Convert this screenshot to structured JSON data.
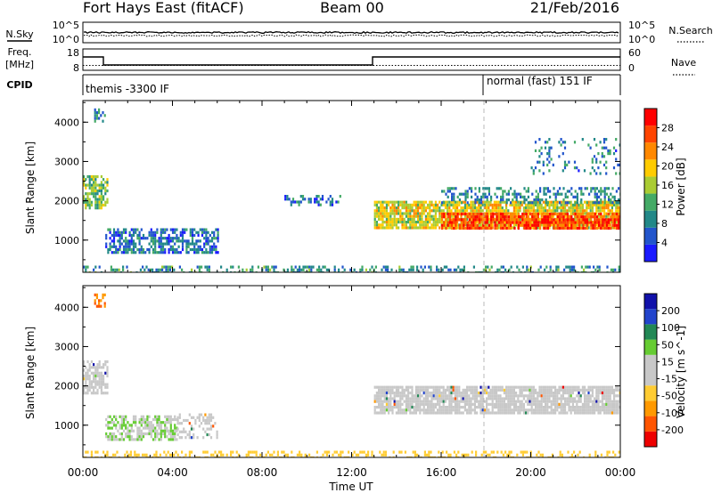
{
  "header": {
    "station": "Fort Hays East (fitACF)",
    "beam": "Beam 00",
    "date": "21/Feb/2016"
  },
  "top_panels": {
    "nsky": {
      "label": "N.Sky",
      "tick_top": "10^5",
      "tick_bottom": "10^0",
      "right_label": "N.Search",
      "right_tick_top": "10^5",
      "right_tick_bottom": "10^0"
    },
    "freq": {
      "label_line1": "Freq.",
      "label_line2": "[MHz]",
      "tick_top": "18",
      "tick_bottom": "8",
      "right_label": "Nave",
      "right_tick_top": "60",
      "right_tick_bottom": "0"
    },
    "cpid": {
      "label": "CPID",
      "modes": [
        {
          "name": "themis -3300 IF",
          "start_hour": 0.0
        },
        {
          "name": "normal (fast) 151 IF",
          "start_hour": 18.0
        }
      ]
    }
  },
  "colors": {
    "power_scale": [
      "#1a1aff",
      "#2255cc",
      "#228888",
      "#44aa66",
      "#aacc33",
      "#ffcc00",
      "#ff8800",
      "#ff4400",
      "#ff0000"
    ],
    "velocity_scale": [
      "#ee0000",
      "#ff5500",
      "#ff9900",
      "#ffcc33",
      "#c8c8c8",
      "#c8c8c8",
      "#66cc33",
      "#228855",
      "#2244cc",
      "#1111aa"
    ],
    "ground_scatter": "#c8c8c8"
  },
  "chart_data": [
    {
      "type": "heatmap",
      "panel": "power",
      "ylabel": "Slant Range [km]",
      "colorbar_label": "Power [dB]",
      "colorbar_ticks": [
        "4",
        "8",
        "12",
        "16",
        "20",
        "24",
        "28"
      ],
      "clim": [
        0,
        32
      ],
      "xlim_hours": [
        0,
        24
      ],
      "ylim_km": [
        180,
        4550
      ],
      "y_ticks": [
        "1000",
        "2000",
        "3000",
        "4000"
      ],
      "regions": [
        {
          "t0": 0.0,
          "t1": 1.1,
          "r0": 1800,
          "r1": 2650,
          "value": 14,
          "density": 0.7
        },
        {
          "t0": 0.5,
          "t1": 1.0,
          "r0": 4000,
          "r1": 4350,
          "value": 10,
          "density": 0.5
        },
        {
          "t0": 1.0,
          "t1": 6.0,
          "r0": 650,
          "r1": 1300,
          "value": 7,
          "density": 0.6
        },
        {
          "t0": 9.0,
          "t1": 11.5,
          "r0": 1900,
          "r1": 2150,
          "value": 7,
          "density": 0.3
        },
        {
          "t0": 13.0,
          "t1": 24.0,
          "r0": 1300,
          "r1": 2000,
          "value": 18,
          "density": 0.85
        },
        {
          "t0": 16.0,
          "t1": 24.0,
          "r0": 1300,
          "r1": 1700,
          "value": 27,
          "density": 0.8
        },
        {
          "t0": 16.0,
          "t1": 24.0,
          "r0": 1950,
          "r1": 2350,
          "value": 9,
          "density": 0.4
        },
        {
          "t0": 20.0,
          "t1": 24.0,
          "r0": 2700,
          "r1": 3600,
          "value": 8,
          "density": 0.15
        },
        {
          "t0": 0.0,
          "t1": 24.0,
          "r0": 200,
          "r1": 350,
          "value": 10,
          "density": 0.35
        }
      ]
    },
    {
      "type": "heatmap",
      "panel": "velocity",
      "ylabel": "Slant Range [km]",
      "colorbar_label": "Velocity [m s^-1]",
      "colorbar_ticks": [
        "200",
        "100",
        "50",
        "15",
        "-15",
        "-50",
        "-100",
        "-200"
      ],
      "clim": [
        -250,
        250
      ],
      "xlabel": "Time UT",
      "x_ticks": [
        "00:00",
        "04:00",
        "08:00",
        "12:00",
        "16:00",
        "20:00",
        "00:00"
      ],
      "xlim_hours": [
        0,
        24
      ],
      "ylim_km": [
        180,
        4550
      ],
      "y_ticks": [
        "1000",
        "2000",
        "3000",
        "4000"
      ],
      "regions": [
        {
          "t0": 0.0,
          "t1": 1.1,
          "r0": 1800,
          "r1": 2650,
          "value": 0,
          "ground": true,
          "density": 0.7
        },
        {
          "t0": 0.5,
          "t1": 1.0,
          "r0": 4000,
          "r1": 4350,
          "value": -150,
          "density": 0.5
        },
        {
          "t0": 1.0,
          "t1": 4.2,
          "r0": 650,
          "r1": 1250,
          "value": 45,
          "density": 0.65
        },
        {
          "t0": 4.2,
          "t1": 6.0,
          "r0": 650,
          "r1": 1300,
          "value": 0,
          "ground": true,
          "density": 0.4
        },
        {
          "t0": 13.0,
          "t1": 24.0,
          "r0": 1300,
          "r1": 2000,
          "value": 0,
          "ground": true,
          "density": 0.85
        },
        {
          "t0": 0.0,
          "t1": 24.0,
          "r0": 200,
          "r1": 350,
          "value": -70,
          "density": 0.35
        }
      ]
    }
  ]
}
